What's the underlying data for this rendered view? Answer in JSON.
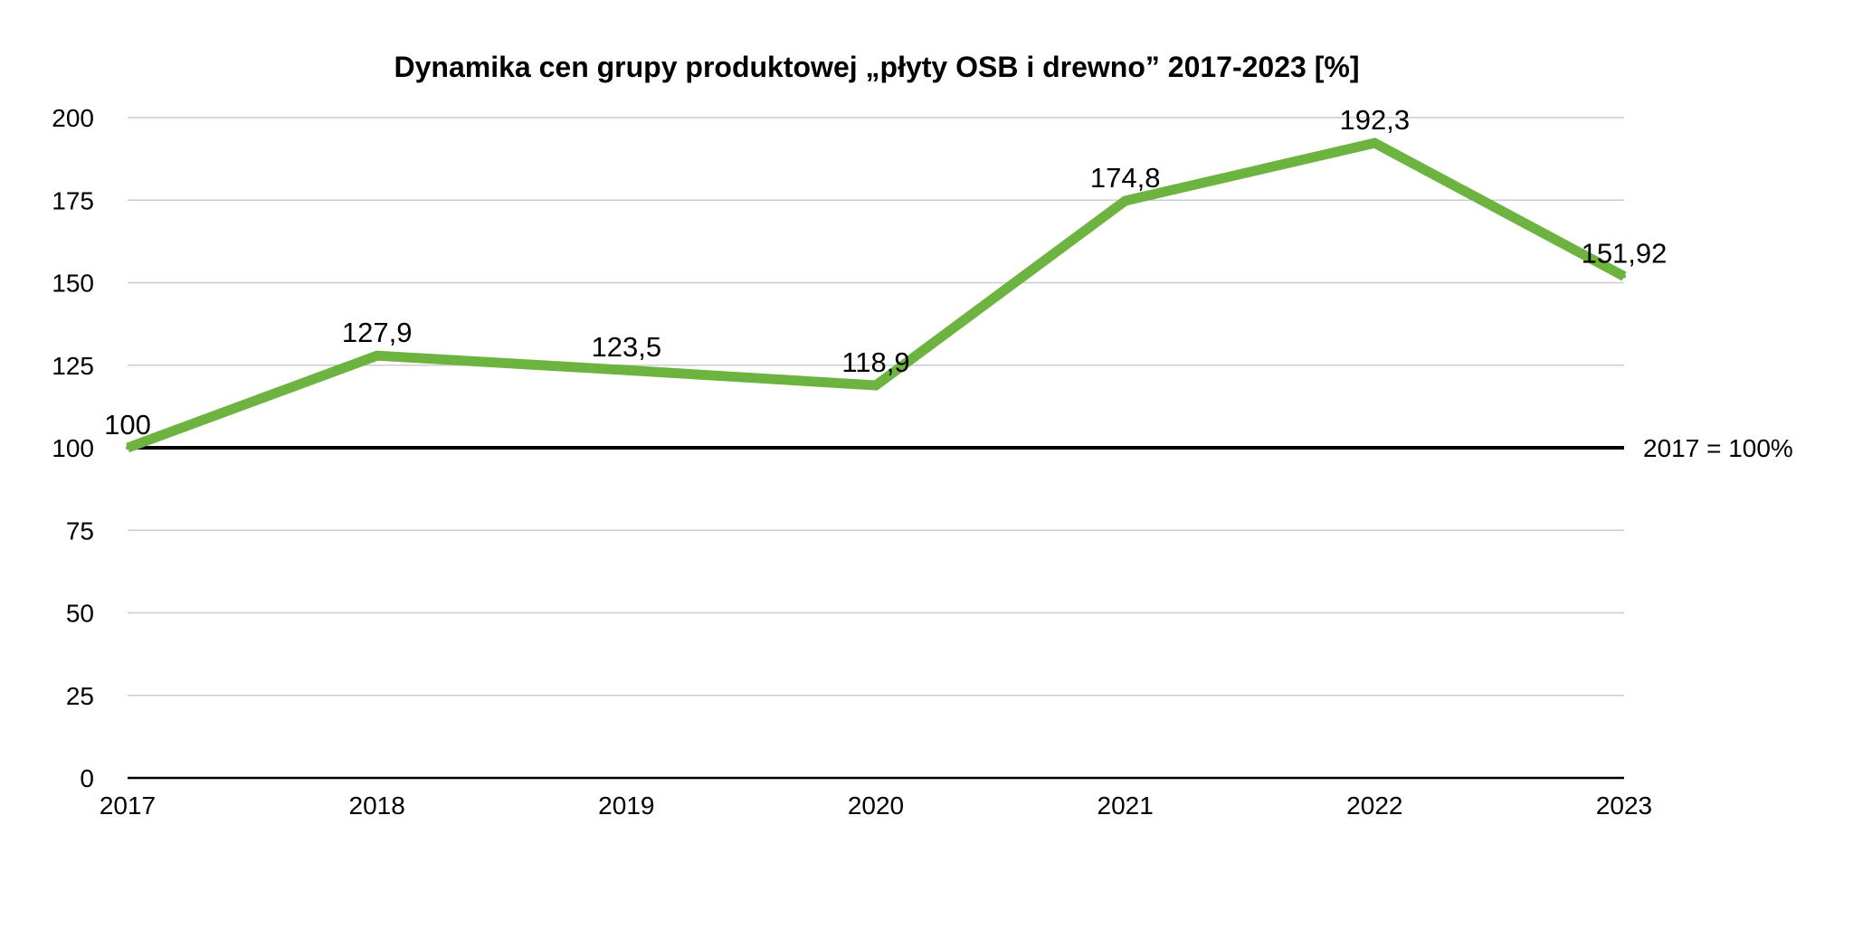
{
  "chart_data": {
    "type": "line",
    "title": "Dynamika cen grupy produktowej „płyty OSB i drewno” 2017-2023 [%]",
    "xlabel": "",
    "ylabel": "",
    "x": [
      "2017",
      "2018",
      "2019",
      "2020",
      "2021",
      "2022",
      "2023"
    ],
    "series": [
      {
        "values": [
          100,
          127.9,
          123.5,
          118.9,
          174.8,
          192.3,
          151.92
        ],
        "data_labels": [
          "100",
          "127,9",
          "123,5",
          "118,9",
          "174,8",
          "192,3",
          "151,92"
        ],
        "color": "#6db33f"
      }
    ],
    "ylim": [
      0,
      200
    ],
    "yticks": [
      0,
      25,
      50,
      75,
      100,
      125,
      150,
      175,
      200
    ],
    "grid": true,
    "gridColor": "#cccccc",
    "reference_line": {
      "value": 100,
      "label": "2017 = 100%",
      "color": "#000000"
    },
    "legend": "none"
  }
}
